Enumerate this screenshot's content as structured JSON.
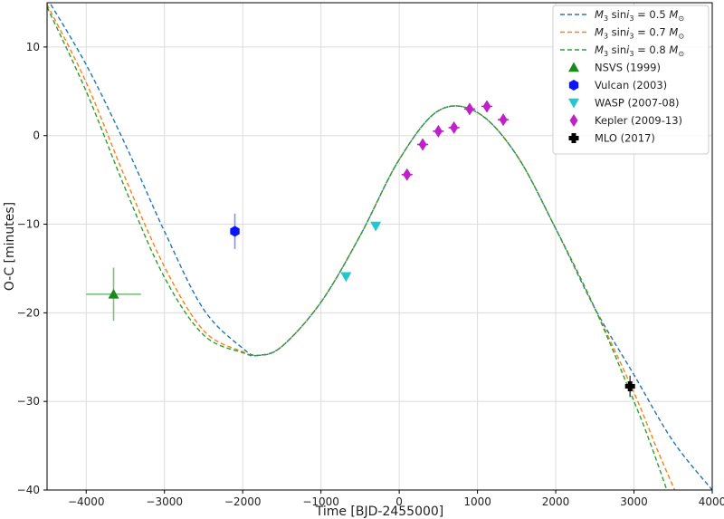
{
  "chart_data": {
    "type": "scatter",
    "xlabel": "Time [BJD-2455000]",
    "ylabel": "O-C [minutes]",
    "xlim": [
      -4500,
      4000
    ],
    "ylim": [
      -40,
      15
    ],
    "grid": true,
    "legend_position": "top-right",
    "x_ticks": [
      -4000,
      -3000,
      -2000,
      -1000,
      0,
      1000,
      2000,
      3000,
      4000
    ],
    "y_ticks": [
      10,
      0,
      -10,
      -20,
      -30,
      -40
    ],
    "models": [
      {
        "name": "M3 sini3 = 0.5 Mo",
        "legend": {
          "prefix": "M",
          "sub1": "3",
          "mid": " sin",
          "italic_i": "i",
          "sub2": "3",
          "suffix": " = 0.5 ",
          "mass_sym": "M",
          "mass_sub": "⊙"
        },
        "color": "#1f77b4",
        "dash": "dashed",
        "x": [
          -4500,
          -4000,
          -3500,
          -3000,
          -2500,
          -2000,
          -1800,
          -1500,
          -1000,
          -500,
          0,
          500,
          1000,
          1500,
          2000,
          2500,
          3000,
          3500,
          4000
        ],
        "y": [
          15.5,
          8.0,
          -1.0,
          -10.8,
          -19.6,
          -24.0,
          -24.8,
          -23.8,
          -18.8,
          -11.3,
          -2.7,
          2.8,
          2.6,
          -2.2,
          -10.5,
          -19.5,
          -27.0,
          -34.5,
          -40.0
        ]
      },
      {
        "name": "M3 sini3 = 0.7 Mo",
        "legend": {
          "prefix": "M",
          "sub1": "3",
          "mid": " sin",
          "italic_i": "i",
          "sub2": "3",
          "suffix": " = 0.7 ",
          "mass_sym": "M",
          "mass_sub": "⊙"
        },
        "color": "#ff7f0e",
        "dash": "dashed",
        "x": [
          -4500,
          -4000,
          -3500,
          -3000,
          -2500,
          -2000,
          -1800,
          -1500,
          -1000,
          -500,
          0,
          500,
          1000,
          1500,
          2000,
          2500,
          3000,
          3300,
          3520
        ],
        "y": [
          14.8,
          6.0,
          -4.8,
          -14.8,
          -22.0,
          -24.4,
          -24.8,
          -23.8,
          -18.8,
          -11.3,
          -2.7,
          2.8,
          2.6,
          -2.2,
          -10.5,
          -19.5,
          -29.0,
          -35.5,
          -40.0
        ]
      },
      {
        "name": "M3 sini3 = 0.8 Mo",
        "legend": {
          "prefix": "M",
          "sub1": "3",
          "mid": " sin",
          "italic_i": "i",
          "sub2": "3",
          "suffix": " = 0.8 ",
          "mass_sym": "M",
          "mass_sub": "⊙"
        },
        "color": "#2ca02c",
        "dash": "dashed",
        "x": [
          -4500,
          -4000,
          -3500,
          -3000,
          -2500,
          -2000,
          -1800,
          -1500,
          -1000,
          -500,
          0,
          500,
          1000,
          1500,
          2000,
          2500,
          3000,
          3200,
          3420
        ],
        "y": [
          14.5,
          5.0,
          -6.0,
          -16.0,
          -22.5,
          -24.5,
          -24.8,
          -23.8,
          -18.8,
          -11.3,
          -2.7,
          2.8,
          2.6,
          -2.2,
          -10.5,
          -19.5,
          -30.0,
          -34.5,
          -40.0
        ]
      }
    ],
    "observations": [
      {
        "name": "NSVS (1999)",
        "marker": "triangle-up",
        "color": "#1a8a1a",
        "color_bar": "#7fbf7f",
        "points": [
          {
            "x": -3650,
            "y": -17.9,
            "xerr": 350,
            "yerr": 3
          }
        ]
      },
      {
        "name": "Vulcan (2003)",
        "marker": "hexagon",
        "color": "#0a14ff",
        "color_bar": "#8090ff",
        "points": [
          {
            "x": -2100,
            "y": -10.8,
            "xerr": 0,
            "yerr": 2
          }
        ]
      },
      {
        "name": "WASP (2007-08)",
        "marker": "triangle-down",
        "color": "#22c8d0",
        "color_bar": "#22c8d0",
        "points": [
          {
            "x": -680,
            "y": -15.9,
            "xerr": 40,
            "yerr": 0.4
          },
          {
            "x": -300,
            "y": -10.2,
            "xerr": 40,
            "yerr": 0.4
          }
        ]
      },
      {
        "name": "Kepler (2009-13)",
        "marker": "thin-diamond",
        "color": "#c020c8",
        "color_bar": "#c020c8",
        "points": [
          {
            "x": 100,
            "y": -4.4,
            "xerr": 70,
            "yerr": 0.6
          },
          {
            "x": 300,
            "y": -1.0,
            "xerr": 70,
            "yerr": 0.6
          },
          {
            "x": 500,
            "y": 0.5,
            "xerr": 70,
            "yerr": 0.6
          },
          {
            "x": 700,
            "y": 0.9,
            "xerr": 70,
            "yerr": 0.6
          },
          {
            "x": 900,
            "y": 3.0,
            "xerr": 70,
            "yerr": 0.6
          },
          {
            "x": 1120,
            "y": 3.3,
            "xerr": 70,
            "yerr": 0.6
          },
          {
            "x": 1330,
            "y": 1.8,
            "xerr": 70,
            "yerr": 0.6
          }
        ]
      },
      {
        "name": "MLO (2017)",
        "marker": "filled-plus",
        "color": "#000000",
        "color_bar": "#555555",
        "points": [
          {
            "x": 2950,
            "y": -28.3,
            "xerr": 60,
            "yerr": 1.2
          }
        ]
      }
    ]
  }
}
